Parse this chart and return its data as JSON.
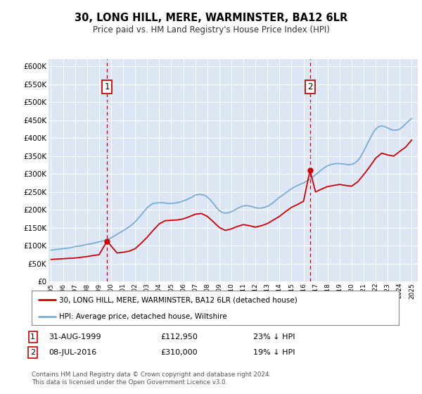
{
  "title": "30, LONG HILL, MERE, WARMINSTER, BA12 6LR",
  "subtitle": "Price paid vs. HM Land Registry's House Price Index (HPI)",
  "ylim": [
    0,
    620000
  ],
  "yticks": [
    0,
    50000,
    100000,
    150000,
    200000,
    250000,
    300000,
    350000,
    400000,
    450000,
    500000,
    550000,
    600000
  ],
  "ytick_labels": [
    "£0",
    "£50K",
    "£100K",
    "£150K",
    "£200K",
    "£250K",
    "£300K",
    "£350K",
    "£400K",
    "£450K",
    "£500K",
    "£550K",
    "£600K"
  ],
  "xlim_start": 1994.8,
  "xlim_end": 2025.5,
  "plot_bg_color": "#dce6f5",
  "red_line_color": "#cc0000",
  "blue_line_color": "#7aadd4",
  "marker1_x": 1999.667,
  "marker1_y": 112950,
  "marker2_x": 2016.54,
  "marker2_y": 310000,
  "legend_label_red": "30, LONG HILL, MERE, WARMINSTER, BA12 6LR (detached house)",
  "legend_label_blue": "HPI: Average price, detached house, Wiltshire",
  "annotation1_date": "31-AUG-1999",
  "annotation1_price": "£112,950",
  "annotation1_hpi": "23% ↓ HPI",
  "annotation2_date": "08-JUL-2016",
  "annotation2_price": "£310,000",
  "annotation2_hpi": "19% ↓ HPI",
  "footer": "Contains HM Land Registry data © Crown copyright and database right 2024.\nThis data is licensed under the Open Government Licence v3.0.",
  "hpi_years": [
    1995.0,
    1995.25,
    1995.5,
    1995.75,
    1996.0,
    1996.25,
    1996.5,
    1996.75,
    1997.0,
    1997.25,
    1997.5,
    1997.75,
    1998.0,
    1998.25,
    1998.5,
    1998.75,
    1999.0,
    1999.25,
    1999.5,
    1999.75,
    2000.0,
    2000.25,
    2000.5,
    2000.75,
    2001.0,
    2001.25,
    2001.5,
    2001.75,
    2002.0,
    2002.25,
    2002.5,
    2002.75,
    2003.0,
    2003.25,
    2003.5,
    2003.75,
    2004.0,
    2004.25,
    2004.5,
    2004.75,
    2005.0,
    2005.25,
    2005.5,
    2005.75,
    2006.0,
    2006.25,
    2006.5,
    2006.75,
    2007.0,
    2007.25,
    2007.5,
    2007.75,
    2008.0,
    2008.25,
    2008.5,
    2008.75,
    2009.0,
    2009.25,
    2009.5,
    2009.75,
    2010.0,
    2010.25,
    2010.5,
    2010.75,
    2011.0,
    2011.25,
    2011.5,
    2011.75,
    2012.0,
    2012.25,
    2012.5,
    2012.75,
    2013.0,
    2013.25,
    2013.5,
    2013.75,
    2014.0,
    2014.25,
    2014.5,
    2014.75,
    2015.0,
    2015.25,
    2015.5,
    2015.75,
    2016.0,
    2016.25,
    2016.5,
    2016.75,
    2017.0,
    2017.25,
    2017.5,
    2017.75,
    2018.0,
    2018.25,
    2018.5,
    2018.75,
    2019.0,
    2019.25,
    2019.5,
    2019.75,
    2020.0,
    2020.25,
    2020.5,
    2020.75,
    2021.0,
    2021.25,
    2021.5,
    2021.75,
    2022.0,
    2022.25,
    2022.5,
    2022.75,
    2023.0,
    2023.25,
    2023.5,
    2023.75,
    2024.0,
    2024.25,
    2024.5,
    2024.75,
    2025.0
  ],
  "hpi_values": [
    88000,
    89000,
    90000,
    91000,
    92000,
    93000,
    94000,
    96000,
    98000,
    99000,
    100000,
    102000,
    104000,
    105000,
    107000,
    109000,
    111000,
    113000,
    115000,
    118000,
    122000,
    127000,
    132000,
    137000,
    142000,
    147000,
    153000,
    159000,
    167000,
    176000,
    186000,
    196000,
    206000,
    213000,
    218000,
    219000,
    220000,
    220000,
    219000,
    218000,
    218000,
    219000,
    220000,
    222000,
    225000,
    228000,
    232000,
    236000,
    241000,
    243000,
    243000,
    241000,
    236000,
    228000,
    218000,
    207000,
    198000,
    193000,
    191000,
    192000,
    195000,
    199000,
    204000,
    208000,
    211000,
    212000,
    211000,
    209000,
    206000,
    205000,
    205000,
    207000,
    210000,
    215000,
    221000,
    228000,
    235000,
    241000,
    247000,
    253000,
    259000,
    264000,
    268000,
    272000,
    275000,
    280000,
    285000,
    291000,
    298000,
    305000,
    312000,
    318000,
    323000,
    326000,
    328000,
    329000,
    329000,
    328000,
    327000,
    326000,
    327000,
    330000,
    337000,
    348000,
    363000,
    380000,
    397000,
    413000,
    425000,
    432000,
    434000,
    432000,
    428000,
    424000,
    422000,
    422000,
    425000,
    432000,
    440000,
    448000,
    455000
  ],
  "red_years": [
    1995.0,
    1995.5,
    1996.0,
    1996.5,
    1997.0,
    1997.5,
    1998.0,
    1998.5,
    1999.0,
    1999.667,
    2000.5,
    2001.0,
    2001.5,
    2002.0,
    2002.5,
    2003.0,
    2003.5,
    2004.0,
    2004.5,
    2005.0,
    2005.5,
    2006.0,
    2006.5,
    2007.0,
    2007.5,
    2008.0,
    2008.5,
    2009.0,
    2009.5,
    2010.0,
    2010.5,
    2011.0,
    2011.5,
    2012.0,
    2012.5,
    2013.0,
    2013.5,
    2014.0,
    2014.5,
    2015.0,
    2015.5,
    2016.0,
    2016.54,
    2017.0,
    2017.5,
    2018.0,
    2018.5,
    2019.0,
    2019.5,
    2020.0,
    2020.5,
    2021.0,
    2021.5,
    2022.0,
    2022.5,
    2023.0,
    2023.5,
    2024.0,
    2024.5,
    2025.0
  ],
  "red_values": [
    62000,
    63000,
    64000,
    65000,
    66000,
    68000,
    70000,
    73000,
    75000,
    112950,
    80000,
    82000,
    85000,
    92000,
    107000,
    124000,
    143000,
    161000,
    170000,
    171000,
    172000,
    175000,
    181000,
    188000,
    190000,
    182000,
    167000,
    151000,
    143000,
    147000,
    154000,
    159000,
    156000,
    152000,
    156000,
    162000,
    172000,
    182000,
    195000,
    207000,
    215000,
    224000,
    310000,
    250000,
    258000,
    265000,
    268000,
    271000,
    268000,
    266000,
    278000,
    298000,
    320000,
    344000,
    358000,
    353000,
    350000,
    363000,
    375000,
    395000
  ]
}
